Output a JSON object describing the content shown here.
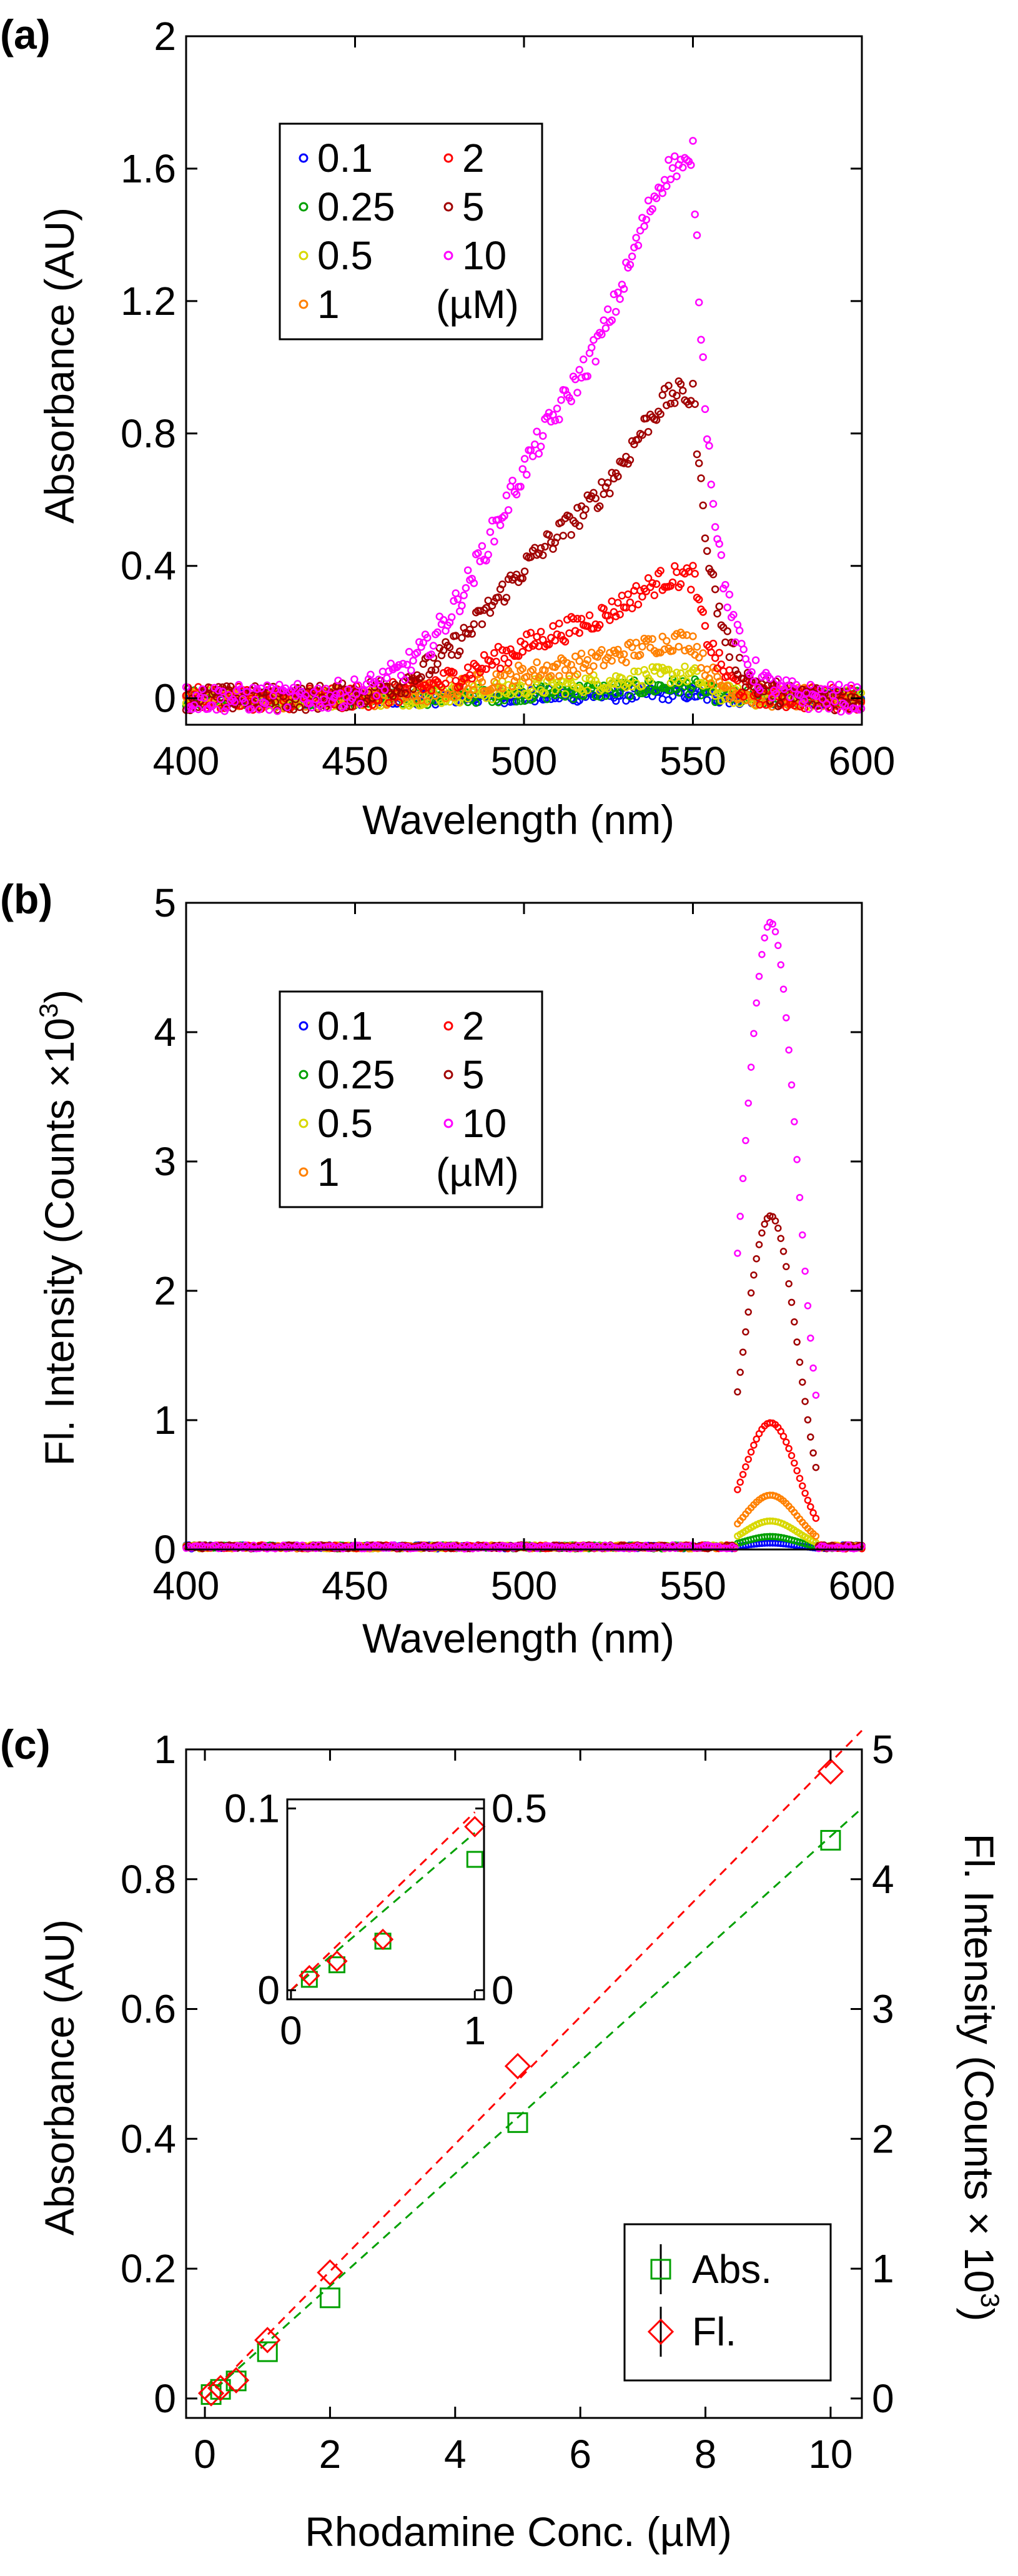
{
  "chart_data": [
    {
      "id": "a",
      "panel_label": "(a)",
      "type": "scatter",
      "xlabel": "Wavelength (nm)",
      "ylabel": "Absorbance (AU)",
      "xlim": [
        400,
        600
      ],
      "ylim": [
        -0.08,
        2.0
      ],
      "xticks": [
        400,
        450,
        500,
        550,
        600
      ],
      "xtick_labels": [
        "400",
        "450",
        "500",
        "550",
        "600"
      ],
      "yticks": [
        0,
        0.4,
        0.8,
        1.2,
        1.6,
        2.0
      ],
      "ytick_labels": [
        "0",
        "0.4",
        "0.8",
        "1.2",
        "1.6",
        "2"
      ],
      "peak_nm": 550,
      "shoulder_nm": 515,
      "noise": 0.035,
      "legend": {
        "unit": "(µM)",
        "entries": [
          {
            "label": "0.1",
            "color": "#0000ff"
          },
          {
            "label": "0.25",
            "color": "#00a000"
          },
          {
            "label": "0.5",
            "color": "#d8d800"
          },
          {
            "label": "1",
            "color": "#ff8000"
          },
          {
            "label": "2",
            "color": "#ff0000"
          },
          {
            "label": "5",
            "color": "#a00000"
          },
          {
            "label": "10",
            "color": "#ff00ff"
          }
        ]
      },
      "series": [
        {
          "name": "0.1",
          "color": "#0000ff",
          "peak": 0.015
        },
        {
          "name": "0.25",
          "color": "#00a000",
          "peak": 0.035
        },
        {
          "name": "0.5",
          "color": "#d8d800",
          "peak": 0.07
        },
        {
          "name": "1",
          "color": "#ff8000",
          "peak": 0.17
        },
        {
          "name": "2",
          "color": "#ff0000",
          "peak": 0.36
        },
        {
          "name": "5",
          "color": "#a00000",
          "peak": 0.9
        },
        {
          "name": "10",
          "color": "#ff00ff",
          "peak": 1.58
        }
      ]
    },
    {
      "id": "b",
      "panel_label": "(b)",
      "type": "scatter",
      "xlabel": "Wavelength (nm)",
      "ylabel_main": "Fl. Intensity (Counts ×10",
      "ylabel_sup": "3",
      "ylabel_end": ")",
      "xlim": [
        400,
        600
      ],
      "ylim": [
        0,
        5
      ],
      "xticks": [
        400,
        450,
        500,
        550,
        600
      ],
      "xtick_labels": [
        "400",
        "450",
        "500",
        "550",
        "600"
      ],
      "yticks": [
        0,
        1,
        2,
        3,
        4,
        5
      ],
      "ytick_labels": [
        "0",
        "1",
        "2",
        "3",
        "4",
        "5"
      ],
      "peak_nm": 573,
      "window_nm": [
        563,
        587
      ],
      "legend": {
        "unit": "(µM)",
        "entries": [
          {
            "label": "0.1",
            "color": "#0000ff"
          },
          {
            "label": "0.25",
            "color": "#00a000"
          },
          {
            "label": "0.5",
            "color": "#d8d800"
          },
          {
            "label": "1",
            "color": "#ff8000"
          },
          {
            "label": "2",
            "color": "#ff0000"
          },
          {
            "label": "5",
            "color": "#a00000"
          },
          {
            "label": "10",
            "color": "#ff00ff"
          }
        ]
      },
      "series": [
        {
          "name": "0.1",
          "color": "#0000ff",
          "peak": 0.05
        },
        {
          "name": "0.25",
          "color": "#00a000",
          "peak": 0.1
        },
        {
          "name": "0.5",
          "color": "#d8d800",
          "peak": 0.22
        },
        {
          "name": "1",
          "color": "#ff8000",
          "peak": 0.42
        },
        {
          "name": "2",
          "color": "#ff0000",
          "peak": 0.98
        },
        {
          "name": "5",
          "color": "#a00000",
          "peak": 2.58
        },
        {
          "name": "10",
          "color": "#ff00ff",
          "peak": 4.85
        }
      ]
    },
    {
      "id": "c",
      "panel_label": "(c)",
      "type": "scatter",
      "xlabel": "Rhodamine Conc. (µM)",
      "ylabel": "Absorbance (AU)",
      "ylabel2_main": "Fl. Intensity (Counts × 10",
      "ylabel2_sup": "3",
      "ylabel2_end": ")",
      "xlim": [
        -0.3,
        10.5
      ],
      "ylim": [
        -0.03,
        1.0
      ],
      "y2lim": [
        -0.15,
        5.0
      ],
      "xticks": [
        0,
        2,
        4,
        6,
        8,
        10
      ],
      "xtick_labels": [
        "0",
        "2",
        "4",
        "6",
        "8",
        "10"
      ],
      "yticks": [
        0,
        0.2,
        0.4,
        0.6,
        0.8,
        1.0
      ],
      "ytick_labels": [
        "0",
        "0.2",
        "0.4",
        "0.6",
        "0.8",
        "1"
      ],
      "y2ticks": [
        0,
        1,
        2,
        3,
        4,
        5
      ],
      "y2tick_labels": [
        "0",
        "1",
        "2",
        "3",
        "4",
        "5"
      ],
      "x": [
        0.1,
        0.25,
        0.5,
        1,
        2,
        5,
        10
      ],
      "abs": {
        "name": "Abs.",
        "color": "#00a000",
        "values": [
          0.006,
          0.014,
          0.027,
          0.072,
          0.155,
          0.425,
          0.86
        ],
        "fit": [
          0,
          0.0866
        ]
      },
      "fl": {
        "name": "Fl.",
        "color": "#ff0000",
        "values": [
          0.04,
          0.08,
          0.14,
          0.45,
          0.97,
          2.56,
          4.83
        ],
        "fit": [
          0,
          0.49
        ]
      },
      "inset": {
        "xlim": [
          -0.02,
          1.05
        ],
        "ylim": [
          -0.005,
          0.105
        ],
        "y2lim": [
          -0.025,
          0.525
        ],
        "xticks": [
          0,
          1
        ],
        "xtick_labels": [
          "0",
          "1"
        ],
        "yticks": [
          0,
          0.1
        ],
        "ytick_labels": [
          "0",
          "0.1"
        ],
        "y2ticks": [
          0,
          0.5
        ],
        "y2tick_labels": [
          "0",
          "0.5"
        ]
      }
    }
  ]
}
